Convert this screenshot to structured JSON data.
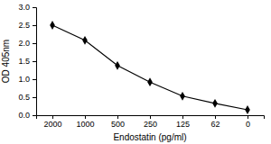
{
  "chart_data": {
    "type": "line",
    "x_label": "Endostatin (pg/ml)",
    "y_label": "OD 405nm",
    "categories": [
      "2000",
      "1000",
      "500",
      "250",
      "125",
      "62",
      "0"
    ],
    "values": [
      2.5,
      2.08,
      1.38,
      0.92,
      0.53,
      0.33,
      0.15
    ],
    "color": "#000000",
    "marker": "diamond",
    "ylim": [
      0,
      3
    ],
    "yticks": [
      {
        "value": 0,
        "label": "0.0"
      },
      0.5,
      {
        "value": 1,
        "label": "1.0"
      },
      1.5,
      {
        "value": 2,
        "label": "2.0"
      },
      2.5,
      {
        "value": 3,
        "label": "3.0"
      }
    ],
    "grid": false
  }
}
